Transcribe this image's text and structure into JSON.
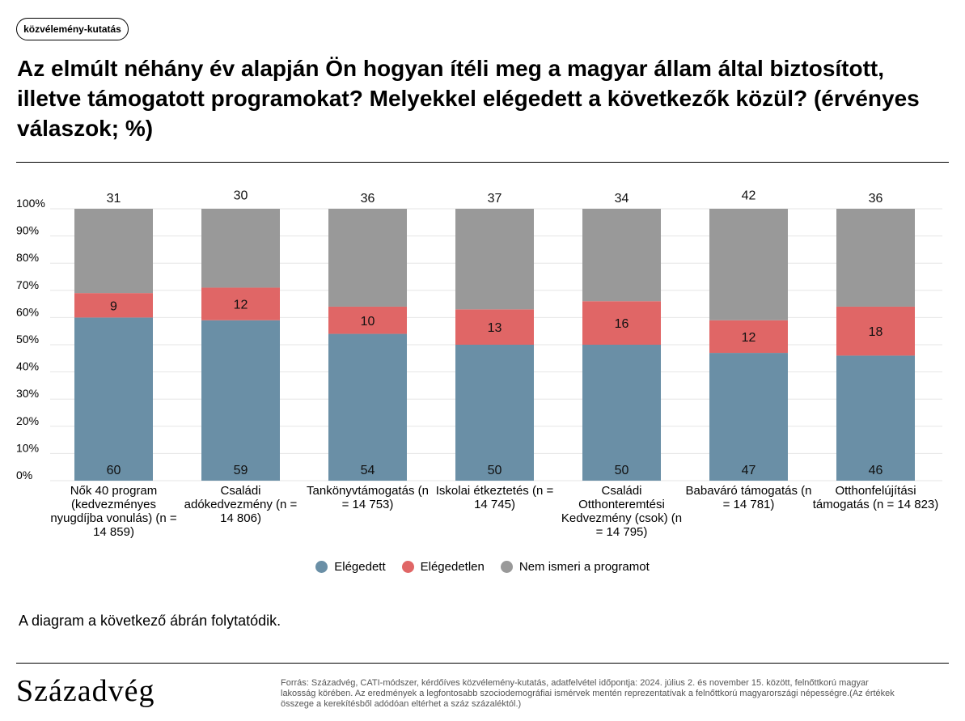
{
  "tag": "közvélemény-kutatás",
  "title": "Az elmúlt néhány év alapján Ön hogyan ítéli meg a magyar állam által biztosított, illetve támogatott programokat? Melyekkel elégedett a következők közül? (érvényes válaszok; %)",
  "note": "A diagram a következő ábrán folytatódik.",
  "brand": "Századvég",
  "source": "Forrás: Századvég, CATI-módszer, kérdőíves közvélemény-kutatás, adatfelvétel időpontja: 2024. július 2. és november 15. között, felnőttkorú magyar lakosság körében. Az eredmények a legfontosabb szociodemográfiai ismérvek mentén reprezentatívak a felnőttkorú magyarországi népességre.(Az értékek összege a kerekítésből adódóan eltérhet a száz százaléktól.)",
  "chart_data": {
    "type": "bar",
    "stacked": true,
    "categories": [
      "Nők 40 program (kedvezményes nyugdíjba vonulás) (n = 14 859)",
      "Családi adókedvezmény (n = 14 806)",
      "Tankönyvtámogatás (n = 14 753)",
      "Iskolai étkeztetés (n = 14 745)",
      "Családi Otthonteremtési Kedvezmény (csok) (n = 14 795)",
      "Babaváró támogatás (n = 14 781)",
      "Otthonfelújítási támogatás (n = 14 823)"
    ],
    "series": [
      {
        "name": "Elégedett",
        "color": "#6a8fa6",
        "values": [
          60,
          59,
          54,
          50,
          50,
          47,
          46
        ]
      },
      {
        "name": "Elégedetlen",
        "color": "#e06666",
        "values": [
          9,
          12,
          10,
          13,
          16,
          12,
          18
        ]
      },
      {
        "name": "Nem ismeri a programot",
        "color": "#999999",
        "values": [
          31,
          30,
          36,
          37,
          34,
          42,
          36
        ]
      }
    ],
    "yticks": [
      "0%",
      "10%",
      "20%",
      "30%",
      "40%",
      "50%",
      "60%",
      "70%",
      "80%",
      "90%",
      "100%"
    ],
    "ylim": [
      0,
      100
    ],
    "grid": true,
    "legend_position": "bottom"
  }
}
